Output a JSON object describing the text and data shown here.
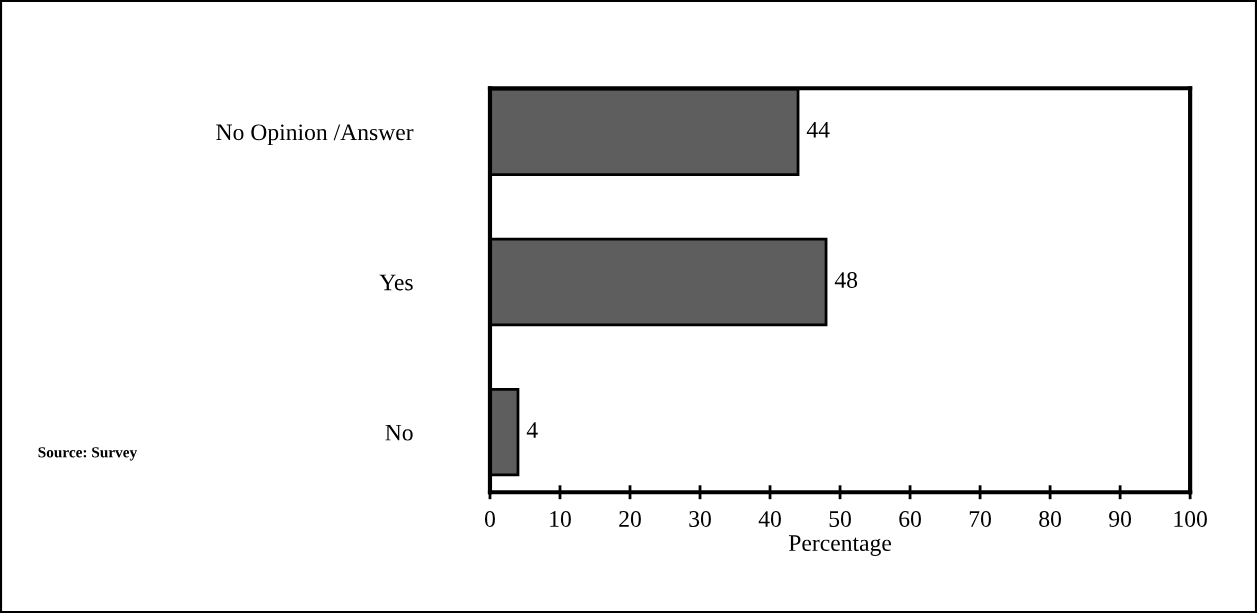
{
  "chart_data": {
    "type": "bar",
    "orientation": "horizontal",
    "categories": [
      "No Opinion /Answer",
      "Yes",
      "No"
    ],
    "values": [
      44,
      48,
      4
    ],
    "color": "#5e5e5e",
    "data_labels": true,
    "xlabel": "Percentage",
    "xlim": [
      0,
      100
    ],
    "xticks": [
      0,
      10,
      20,
      30,
      40,
      50,
      60,
      70,
      80,
      90,
      100
    ],
    "grid": false,
    "annotations": [
      "Source: Survey"
    ]
  }
}
